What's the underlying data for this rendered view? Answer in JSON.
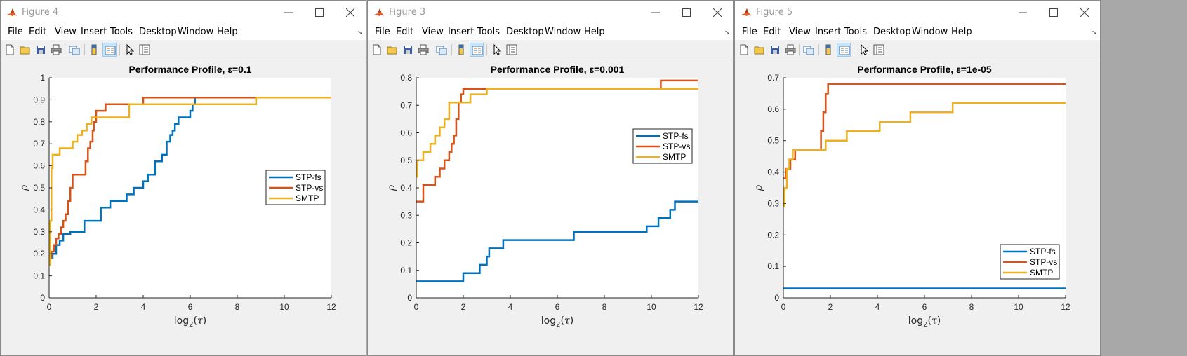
{
  "windows": [
    {
      "title": "Figure 4",
      "menu": [
        "File",
        "Edit",
        "View",
        "Insert",
        "Tools",
        "Desktop",
        "Window",
        "Help"
      ],
      "chart_data": {
        "type": "line",
        "title": "Performance Profile, ε=0.1",
        "xlabel": "log2(τ)",
        "ylabel": "ρ",
        "xlim": [
          0,
          12
        ],
        "ylim": [
          0,
          1
        ],
        "xticks": [
          0,
          2,
          4,
          6,
          8,
          10,
          12
        ],
        "yticks": [
          0,
          0.1,
          0.2,
          0.3,
          0.4,
          0.5,
          0.6,
          0.7,
          0.8,
          0.9,
          1
        ],
        "legend_position": "right",
        "series": [
          {
            "name": "STP-fs",
            "color": "#0072bd",
            "x": [
              0,
              0.15,
              0.3,
              0.45,
              0.6,
              0.9,
              1.5,
              2.2,
              2.6,
              3.3,
              3.6,
              4,
              4.2,
              4.5,
              4.8,
              5.0,
              5.15,
              5.25,
              5.35,
              5.5,
              6.0,
              6.1,
              6.2,
              12
            ],
            "y": [
              0.18,
              0.2,
              0.24,
              0.26,
              0.29,
              0.3,
              0.35,
              0.41,
              0.44,
              0.47,
              0.5,
              0.53,
              0.56,
              0.62,
              0.65,
              0.71,
              0.74,
              0.76,
              0.79,
              0.82,
              0.85,
              0.88,
              0.91,
              0.91
            ]
          },
          {
            "name": "STP-vs",
            "color": "#d95319",
            "x": [
              0,
              0.05,
              0.1,
              0.2,
              0.3,
              0.4,
              0.5,
              0.6,
              0.7,
              0.8,
              0.9,
              1.0,
              1.1,
              1.55,
              1.65,
              1.75,
              1.85,
              1.9,
              2.0,
              2.4,
              4.0,
              12
            ],
            "y": [
              0.15,
              0.18,
              0.21,
              0.24,
              0.27,
              0.29,
              0.32,
              0.35,
              0.38,
              0.44,
              0.5,
              0.56,
              0.56,
              0.62,
              0.68,
              0.71,
              0.76,
              0.8,
              0.85,
              0.88,
              0.91,
              0.91
            ]
          },
          {
            "name": "SMTP",
            "color": "#edb120",
            "x": [
              0,
              0.05,
              0.1,
              0.15,
              0.3,
              0.45,
              1.0,
              1.2,
              1.4,
              1.6,
              1.7,
              1.8,
              2.0,
              3.4,
              8.8,
              12
            ],
            "y": [
              0.15,
              0.35,
              0.59,
              0.65,
              0.65,
              0.68,
              0.71,
              0.74,
              0.76,
              0.79,
              0.79,
              0.82,
              0.82,
              0.88,
              0.91,
              0.91
            ]
          }
        ]
      }
    },
    {
      "title": "Figure 3",
      "menu": [
        "File",
        "Edit",
        "View",
        "Insert",
        "Tools",
        "Desktop",
        "Window",
        "Help"
      ],
      "chart_data": {
        "type": "line",
        "title": "Performance Profile, ε=0.001",
        "xlabel": "log2(τ)",
        "ylabel": "ρ",
        "xlim": [
          0,
          12
        ],
        "ylim": [
          0,
          0.8
        ],
        "xticks": [
          0,
          2,
          4,
          6,
          8,
          10,
          12
        ],
        "yticks": [
          0,
          0.1,
          0.2,
          0.3,
          0.4,
          0.5,
          0.6,
          0.7,
          0.8
        ],
        "legend_position": "right",
        "series": [
          {
            "name": "STP-fs",
            "color": "#0072bd",
            "x": [
              0,
              2.0,
              2.7,
              3.0,
              3.1,
              3.7,
              6.7,
              9.8,
              10.3,
              10.8,
              11.0,
              12
            ],
            "y": [
              0.06,
              0.09,
              0.12,
              0.15,
              0.18,
              0.21,
              0.24,
              0.26,
              0.29,
              0.32,
              0.35,
              0.35
            ]
          },
          {
            "name": "STP-vs",
            "color": "#d95319",
            "x": [
              0,
              0.3,
              0.8,
              1.0,
              1.2,
              1.4,
              1.5,
              1.6,
              1.7,
              1.8,
              1.9,
              2.0,
              10.4,
              12
            ],
            "y": [
              0.35,
              0.41,
              0.44,
              0.47,
              0.5,
              0.53,
              0.56,
              0.59,
              0.65,
              0.71,
              0.74,
              0.76,
              0.79,
              0.79
            ]
          },
          {
            "name": "SMTP",
            "color": "#edb120",
            "x": [
              0,
              0.05,
              0.3,
              0.6,
              0.8,
              1.0,
              1.2,
              1.4,
              1.6,
              1.7,
              2.3,
              3.0,
              12
            ],
            "y": [
              0.44,
              0.5,
              0.53,
              0.56,
              0.59,
              0.62,
              0.65,
              0.71,
              0.71,
              0.71,
              0.74,
              0.76,
              0.76
            ]
          }
        ]
      }
    },
    {
      "title": "Figure 5",
      "menu": [
        "File",
        "Edit",
        "View",
        "Insert",
        "Tools",
        "Desktop",
        "Window",
        "Help"
      ],
      "chart_data": {
        "type": "line",
        "title": "Performance Profile, ε=1e-05",
        "xlabel": "log2(τ)",
        "ylabel": "ρ",
        "xlim": [
          0,
          12
        ],
        "ylim": [
          0,
          0.7
        ],
        "xticks": [
          0,
          2,
          4,
          6,
          8,
          10,
          12
        ],
        "yticks": [
          0,
          0.1,
          0.2,
          0.3,
          0.4,
          0.5,
          0.6,
          0.7
        ],
        "legend_position": "bottom-right",
        "series": [
          {
            "name": "STP-fs",
            "color": "#0072bd",
            "x": [
              0,
              12
            ],
            "y": [
              0.03,
              0.03
            ]
          },
          {
            "name": "STP-vs",
            "color": "#d95319",
            "x": [
              0,
              0.1,
              0.2,
              0.3,
              0.4,
              0.5,
              1.6,
              1.7,
              1.8,
              1.9,
              12
            ],
            "y": [
              0.38,
              0.41,
              0.41,
              0.44,
              0.44,
              0.47,
              0.53,
              0.59,
              0.65,
              0.68,
              0.68
            ]
          },
          {
            "name": "SMTP",
            "color": "#edb120",
            "x": [
              0,
              0.05,
              0.15,
              0.25,
              0.4,
              0.6,
              1.8,
              2.7,
              4.1,
              5.4,
              7.2,
              12
            ],
            "y": [
              0.29,
              0.35,
              0.41,
              0.44,
              0.47,
              0.47,
              0.5,
              0.53,
              0.56,
              0.59,
              0.62,
              0.62
            ]
          }
        ]
      }
    }
  ]
}
